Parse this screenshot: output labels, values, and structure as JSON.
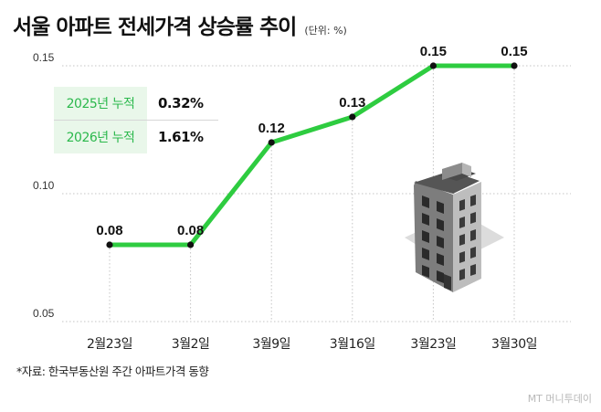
{
  "header": {
    "title": "서울 아파트 전세가격 상승률 추이",
    "unit": "(단위: %)"
  },
  "summary": [
    {
      "label": "2025년 누적",
      "value": "0.32%"
    },
    {
      "label": "2026년 누적",
      "value": "1.61%"
    }
  ],
  "chart_data": {
    "type": "line",
    "title": "서울 아파트 전세가격 상승률 추이",
    "categories": [
      "2월23일",
      "3월2일",
      "3월9일",
      "3월16일",
      "3월23일",
      "3월30일"
    ],
    "values": [
      0.08,
      0.08,
      0.12,
      0.13,
      0.15,
      0.15
    ],
    "data_labels": [
      "0.08",
      "0.08",
      "0.12",
      "0.13",
      "0.15",
      "0.15"
    ],
    "y_ticks": [
      0.05,
      0.1,
      0.15
    ],
    "y_tick_labels": [
      "0.05",
      "0.10",
      "0.15"
    ],
    "ylim": [
      0.05,
      0.15
    ],
    "grid": "horizontal-dotted",
    "line_color": "#2ecc40"
  },
  "illustration": {
    "icon": "apartment-building-icon"
  },
  "footer": {
    "source": "*자료: 한국부동산원 주간 아파트가격 동향",
    "brand": "MT 머니투데이"
  }
}
